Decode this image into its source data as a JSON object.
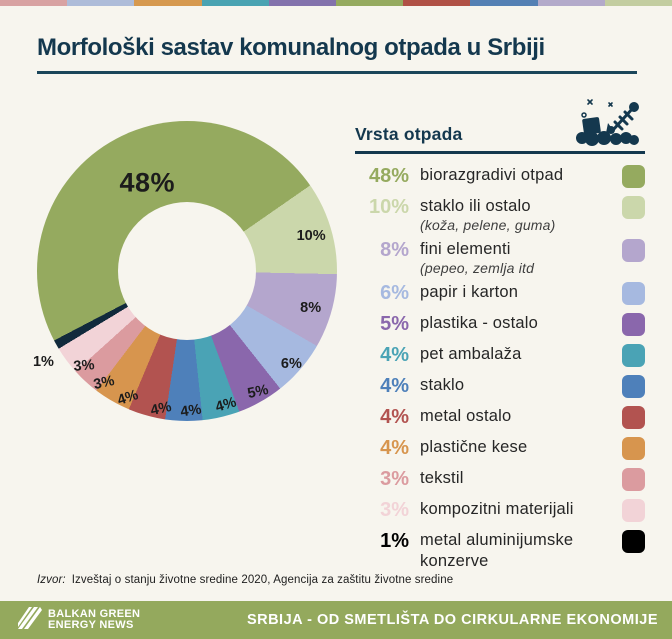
{
  "page": {
    "background": "#f7f5ee",
    "accent_navy": "#14384e"
  },
  "top_strip_colors": [
    "#d8a2a2",
    "#aebcd9",
    "#d6994f",
    "#4aa3b2",
    "#8372ac",
    "#95aa5f",
    "#b05146",
    "#5480b4",
    "#b3aaca",
    "#c3cda0"
  ],
  "title": "Morfološki sastav komunalnog otpada u Srbiji",
  "legend": {
    "title": "Vrsta otpada",
    "icon": "trash-pile-icon"
  },
  "chart_data": {
    "type": "pie",
    "donut": true,
    "unit": "%",
    "title": "Morfološki sastav komunalnog otpada u Srbiji",
    "legend_title": "Vrsta otpada",
    "start_angle_deg": 242.4,
    "segments": [
      {
        "value": 48,
        "label": "biorazgradivi otpad",
        "color": "#95aa5f"
      },
      {
        "value": 10,
        "label": "staklo ili ostalo",
        "sublabel": "(koža, pelene, guma)",
        "color": "#cbd7ab"
      },
      {
        "value": 8,
        "label": "fini elementi",
        "sublabel": "(pepeo, zemlja itd",
        "color": "#b4a6cd"
      },
      {
        "value": 6,
        "label": "papir i karton",
        "color": "#a6b9e0"
      },
      {
        "value": 5,
        "label": "plastika - ostalo",
        "color": "#8a67ac"
      },
      {
        "value": 4,
        "label": "pet ambalaža",
        "color": "#4aa3b5"
      },
      {
        "value": 4,
        "label": "staklo",
        "color": "#4e80ba"
      },
      {
        "value": 4,
        "label": "metal ostalo",
        "color": "#b25350"
      },
      {
        "value": 4,
        "label": "plastične kese",
        "color": "#d7954e"
      },
      {
        "value": 3,
        "label": "tekstil",
        "color": "#db9b9f"
      },
      {
        "value": 3,
        "label": "kompozitni materijali",
        "color": "#f2d3d7"
      },
      {
        "value": 1,
        "label": "metal aluminijumske konzerve",
        "color": "#112a3c",
        "legend_color": "#000000"
      }
    ]
  },
  "source": {
    "prefix": "Izvor:",
    "text": "Izveštaj o stanju životne sredine 2020, Agencija za zaštitu životne sredine"
  },
  "footer": {
    "background": "#94a95d",
    "logo_line1": "BALKAN GREEN",
    "logo_line2": "ENERGY NEWS",
    "tagline": "SRBIJA - OD SMETLIŠTA DO CIRKULARNE EKONOMIJE"
  }
}
